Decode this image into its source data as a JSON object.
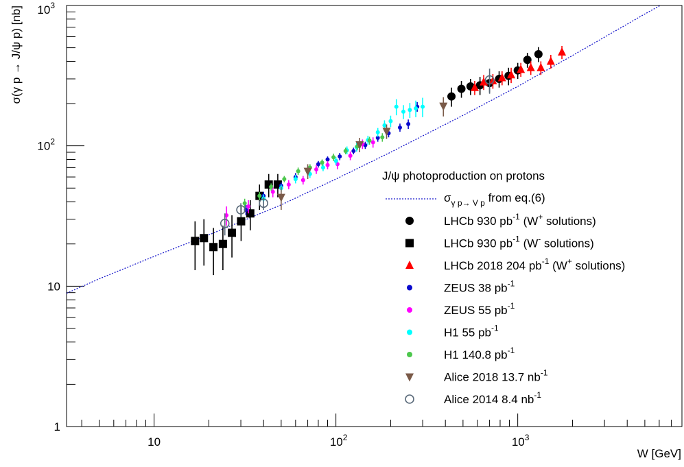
{
  "chart_data": {
    "type": "scatter",
    "title": "",
    "xlabel": "W [GeV]",
    "ylabel": "σ(γ p → J/ψ p) [nb]",
    "x_scale": "log",
    "y_scale": "log",
    "xlim": [
      3.3,
      8000
    ],
    "ylim": [
      1,
      1000
    ],
    "grid": false,
    "legend_title": "J/ψ photoproduction on protons",
    "legend_position": "bottom-right",
    "x_tick_labels": [
      {
        "value": 10,
        "base": "10",
        "exp": ""
      },
      {
        "value": 100,
        "base": "10",
        "exp": "2"
      },
      {
        "value": 1000,
        "base": "10",
        "exp": "3"
      }
    ],
    "y_tick_labels": [
      {
        "value": 1,
        "base": "1",
        "exp": ""
      },
      {
        "value": 10,
        "base": "10",
        "exp": ""
      },
      {
        "value": 100,
        "base": "10",
        "exp": "2"
      },
      {
        "value": 1000,
        "base": "10",
        "exp": "3"
      }
    ],
    "curve": {
      "name_main": "σ",
      "name_sub": "γ p→ V p",
      "name_rest": " from eq.(6)",
      "color": "#1a1acc",
      "points": [
        [
          3.3,
          8.9
        ],
        [
          5,
          11.3
        ],
        [
          10,
          16.3
        ],
        [
          20,
          23.2
        ],
        [
          50,
          38
        ],
        [
          100,
          58
        ],
        [
          200,
          90
        ],
        [
          500,
          165
        ],
        [
          1000,
          265
        ],
        [
          2000,
          440
        ],
        [
          5000,
          870
        ],
        [
          6500,
          1050
        ]
      ]
    },
    "series": [
      {
        "name_parts": [
          "LHCb 930 pb",
          "-1",
          " (W",
          "+",
          " solutions)"
        ],
        "marker": "circle",
        "color": "#000000",
        "size": 6,
        "points": [
          [
            432,
            225,
            35
          ],
          [
            490,
            255,
            35
          ],
          [
            550,
            265,
            35
          ],
          [
            620,
            270,
            40
          ],
          [
            700,
            280,
            40
          ],
          [
            790,
            300,
            40
          ],
          [
            890,
            315,
            45
          ],
          [
            1000,
            345,
            45
          ],
          [
            1130,
            410,
            50
          ],
          [
            1300,
            450,
            55
          ]
        ]
      },
      {
        "name_parts": [
          "LHCb 930 pb",
          "-1",
          " (W",
          "-",
          " solutions)"
        ],
        "marker": "square",
        "color": "#000000",
        "size": 6,
        "points": [
          [
            16.8,
            21,
            8
          ],
          [
            18.8,
            22,
            8
          ],
          [
            21.2,
            19,
            7
          ],
          [
            23.9,
            20,
            7
          ],
          [
            26.8,
            24,
            8
          ],
          [
            30.1,
            29,
            8
          ],
          [
            33.8,
            33,
            8
          ],
          [
            38,
            44,
            9
          ],
          [
            42.7,
            53,
            10
          ],
          [
            47.9,
            53,
            10
          ]
        ]
      },
      {
        "name_parts": [
          "LHCb 2018 204 pb",
          "-1",
          " (W",
          "+",
          " solutions)"
        ],
        "marker": "triangle-up",
        "color": "#ff0000",
        "size": 6,
        "points": [
          [
            580,
            260,
            30
          ],
          [
            650,
            285,
            35
          ],
          [
            730,
            290,
            35
          ],
          [
            820,
            305,
            35
          ],
          [
            920,
            320,
            40
          ],
          [
            1040,
            350,
            40
          ],
          [
            1180,
            360,
            40
          ],
          [
            1340,
            360,
            40
          ],
          [
            1520,
            400,
            45
          ],
          [
            1750,
            465,
            50
          ]
        ]
      },
      {
        "name_parts": [
          "ZEUS 38 pb",
          "-1"
        ],
        "marker": "circle",
        "color": "#0a0acd",
        "size": 3,
        "points": [
          [
            32,
            35,
            3
          ],
          [
            40,
            44,
            3
          ],
          [
            50,
            52,
            3
          ],
          [
            60,
            60,
            4
          ],
          [
            70,
            67,
            4
          ],
          [
            80,
            74,
            4
          ],
          [
            90,
            80,
            4
          ],
          [
            105,
            84,
            5
          ],
          [
            125,
            92,
            5
          ],
          [
            145,
            101,
            6
          ],
          [
            170,
            114,
            7
          ],
          [
            195,
            123,
            8
          ],
          [
            225,
            135,
            9
          ],
          [
            250,
            143,
            11
          ],
          [
            280,
            190,
            15
          ]
        ]
      },
      {
        "name_parts": [
          "ZEUS 55 pb",
          "-1"
        ],
        "marker": "circle",
        "color": "#ff00ff",
        "size": 3,
        "points": [
          [
            25,
            32,
            5
          ],
          [
            33,
            37,
            4
          ],
          [
            45,
            47,
            4
          ],
          [
            55,
            53,
            4
          ],
          [
            66,
            57,
            4
          ],
          [
            78,
            68,
            5
          ],
          [
            90,
            73,
            5
          ],
          [
            102,
            74,
            6
          ],
          [
            120,
            85,
            6
          ],
          [
            140,
            103,
            8
          ],
          [
            160,
            106,
            9
          ]
        ]
      },
      {
        "name_parts": [
          "H1 55 pb",
          "-1"
        ],
        "marker": "circle",
        "color": "#00ffff",
        "size": 3,
        "points": [
          [
            40,
            42,
            3
          ],
          [
            50,
            50,
            3
          ],
          [
            60,
            58,
            4
          ],
          [
            72,
            63,
            4
          ],
          [
            85,
            70,
            4
          ],
          [
            100,
            78,
            5
          ],
          [
            115,
            93,
            6
          ],
          [
            130,
            98,
            7
          ],
          [
            150,
            110,
            8
          ],
          [
            170,
            125,
            9
          ],
          [
            185,
            140,
            12
          ],
          [
            200,
            150,
            14
          ],
          [
            215,
            190,
            25
          ],
          [
            235,
            175,
            20
          ],
          [
            255,
            180,
            22
          ],
          [
            275,
            185,
            25
          ],
          [
            300,
            190,
            30
          ]
        ]
      },
      {
        "name_parts": [
          "H1 140.8 pb",
          "-1"
        ],
        "marker": "circle",
        "color": "#4cc74c",
        "size": 3,
        "points": [
          [
            31.5,
            39,
            3
          ],
          [
            38,
            44,
            3
          ],
          [
            44,
            51,
            3
          ],
          [
            52,
            58,
            3
          ],
          [
            62,
            66,
            4
          ],
          [
            72,
            70,
            4
          ],
          [
            84,
            76,
            4
          ],
          [
            97,
            83,
            5
          ],
          [
            113,
            92,
            5
          ],
          [
            131,
            99,
            6
          ],
          [
            153,
            109,
            7
          ],
          [
            180,
            115,
            8
          ]
        ]
      },
      {
        "name_parts": [
          "Alice 2018 13.7 nb",
          "-1"
        ],
        "marker": "triangle-down",
        "color": "#7a5a48",
        "size": 6,
        "points": [
          [
            50,
            43,
            8
          ],
          [
            70,
            66,
            8
          ],
          [
            135,
            102,
            12
          ],
          [
            190,
            127,
            15
          ],
          [
            390,
            192,
            30
          ]
        ]
      },
      {
        "name_parts": [
          "Alice 2014 8.4 nb",
          "-1"
        ],
        "marker": "open-circle",
        "color": "#5a6a7a",
        "size": 6,
        "points": [
          [
            24.5,
            28,
            5
          ],
          [
            30,
            35,
            4
          ],
          [
            40,
            39,
            4
          ],
          [
            700,
            295,
            60
          ]
        ]
      }
    ]
  }
}
